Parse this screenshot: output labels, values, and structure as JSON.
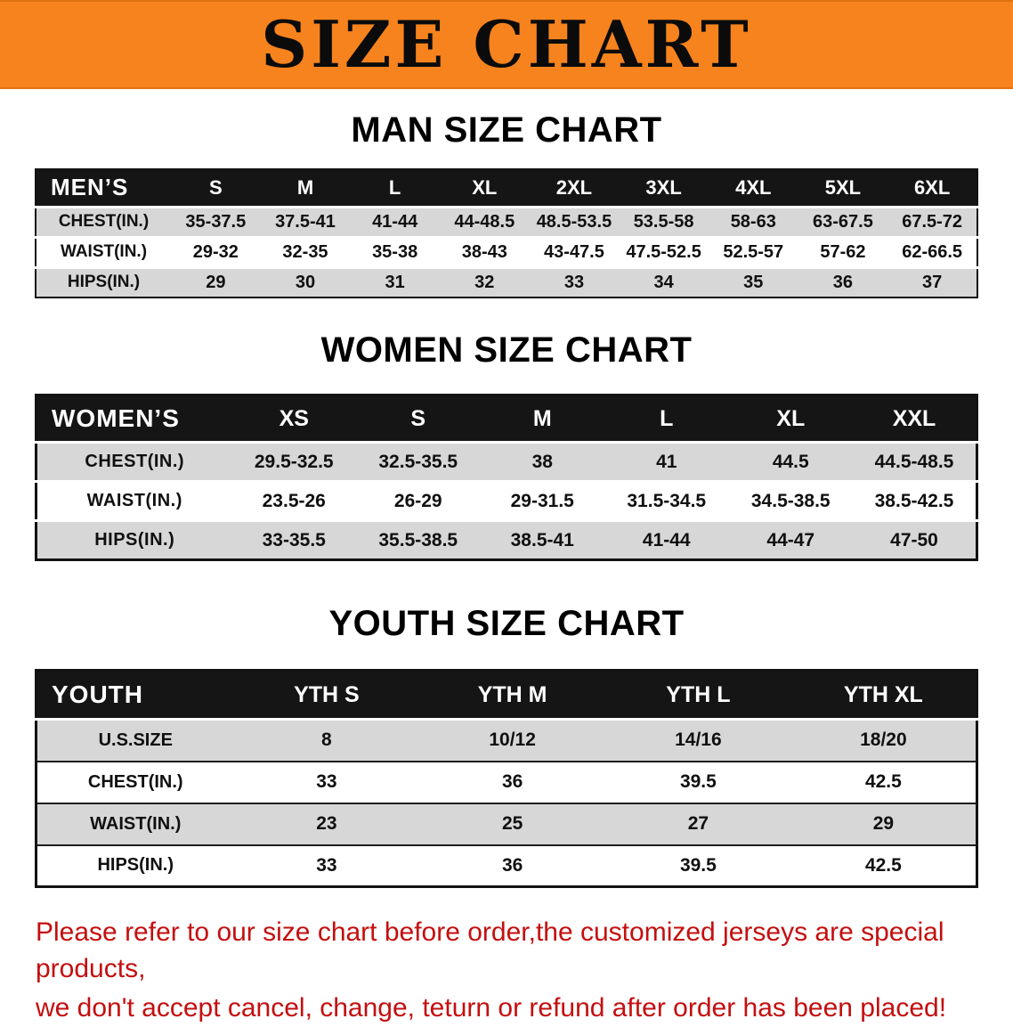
{
  "banner": {
    "title": "SIZE CHART"
  },
  "colors": {
    "banner_bg": "#F6831D",
    "table_header_bg": "#151515",
    "row_stripe": "#d7d7d7",
    "note_red": "#c40f0f"
  },
  "sections": [
    {
      "heading": "MAN SIZE CHART",
      "table": {
        "header": [
          "MEN’S",
          "S",
          "M",
          "L",
          "XL",
          "2XL",
          "3XL",
          "4XL",
          "5XL",
          "6XL"
        ],
        "rows": [
          [
            "CHEST(IN.)",
            "35-37.5",
            "37.5-41",
            "41-44",
            "44-48.5",
            "48.5-53.5",
            "53.5-58",
            "58-63",
            "63-67.5",
            "67.5-72"
          ],
          [
            "WAIST(IN.)",
            "29-32",
            "32-35",
            "35-38",
            "38-43",
            "43-47.5",
            "47.5-52.5",
            "52.5-57",
            "57-62",
            "62-66.5"
          ],
          [
            "HIPS(IN.)",
            "29",
            "30",
            "31",
            "32",
            "33",
            "34",
            "35",
            "36",
            "37"
          ]
        ]
      }
    },
    {
      "heading": "WOMEN SIZE CHART",
      "table": {
        "header": [
          "WOMEN’S",
          "XS",
          "S",
          "M",
          "L",
          "XL",
          "XXL"
        ],
        "rows": [
          [
            "CHEST(IN.)",
            "29.5-32.5",
            "32.5-35.5",
            "38",
            "41",
            "44.5",
            "44.5-48.5"
          ],
          [
            "WAIST(IN.)",
            "23.5-26",
            "26-29",
            "29-31.5",
            "31.5-34.5",
            "34.5-38.5",
            "38.5-42.5"
          ],
          [
            "HIPS(IN.)",
            "33-35.5",
            "35.5-38.5",
            "38.5-41",
            "41-44",
            "44-47",
            "47-50"
          ]
        ]
      }
    },
    {
      "heading": "YOUTH SIZE CHART",
      "table": {
        "header": [
          "YOUTH",
          "YTH S",
          "YTH M",
          "YTH L",
          "YTH XL"
        ],
        "rows": [
          [
            "U.S.SIZE",
            "8",
            "10/12",
            "14/16",
            "18/20"
          ],
          [
            "CHEST(IN.)",
            "33",
            "36",
            "39.5",
            "42.5"
          ],
          [
            "WAIST(IN.)",
            "23",
            "25",
            "27",
            "29"
          ],
          [
            "HIPS(IN.)",
            "33",
            "36",
            "39.5",
            "42.5"
          ]
        ]
      }
    }
  ],
  "footer": {
    "line1": "Please refer to our size chart before order,the customized jerseys are special products,",
    "line2": "we don't accept cancel, change, teturn or refund after order has been placed!"
  }
}
